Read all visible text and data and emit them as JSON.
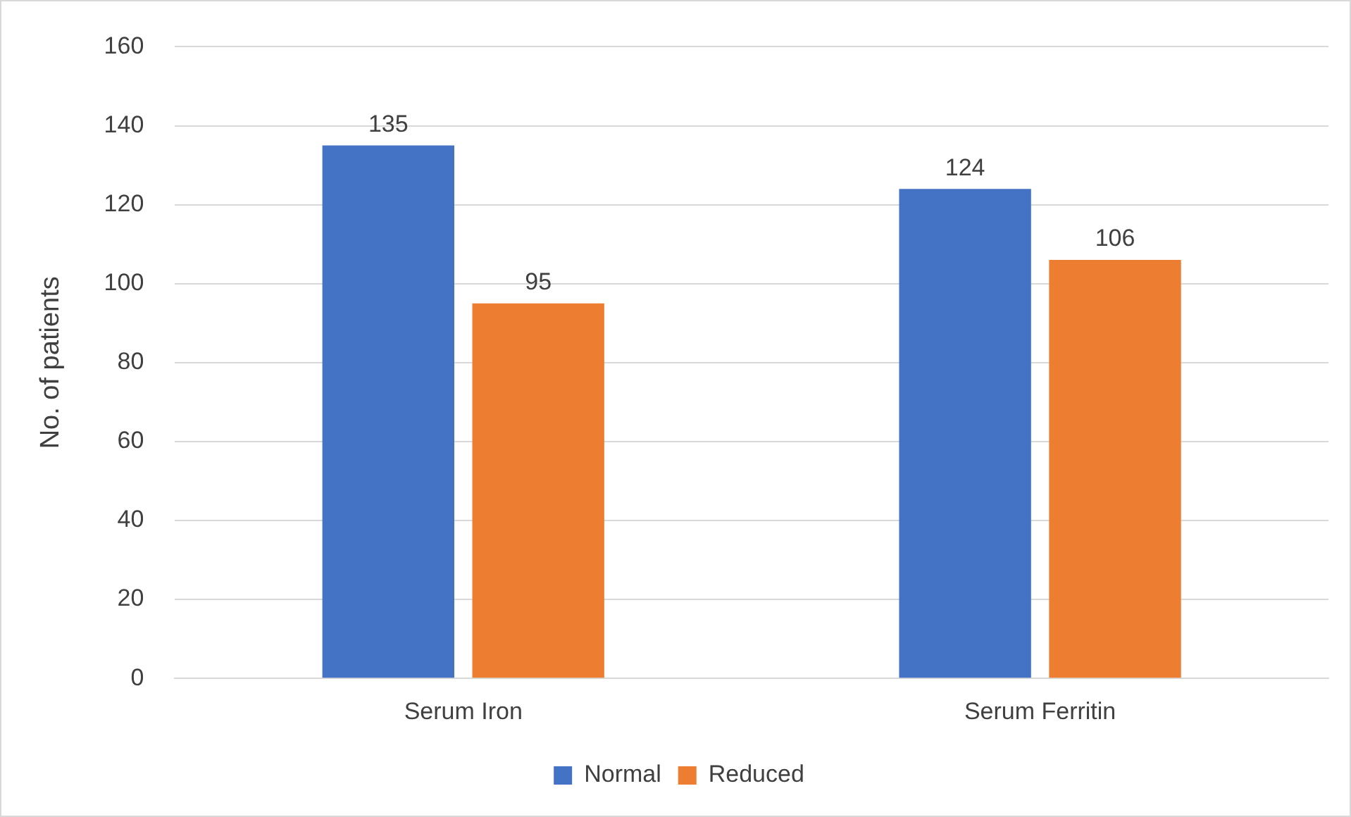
{
  "chart_data": {
    "type": "bar",
    "ylabel": "No. of patients",
    "categories": [
      "Serum Iron",
      "Serum Ferritin"
    ],
    "series": [
      {
        "name": "Normal",
        "color": "#4472c4",
        "values": [
          135,
          124
        ]
      },
      {
        "name": "Reduced",
        "color": "#ed7d31",
        "values": [
          95,
          106
        ]
      }
    ],
    "ylim": [
      0,
      160
    ],
    "yticks": [
      0,
      20,
      40,
      60,
      80,
      100,
      120,
      140,
      160
    ],
    "grid": "y",
    "legend": "bottom",
    "data_labels": true
  }
}
